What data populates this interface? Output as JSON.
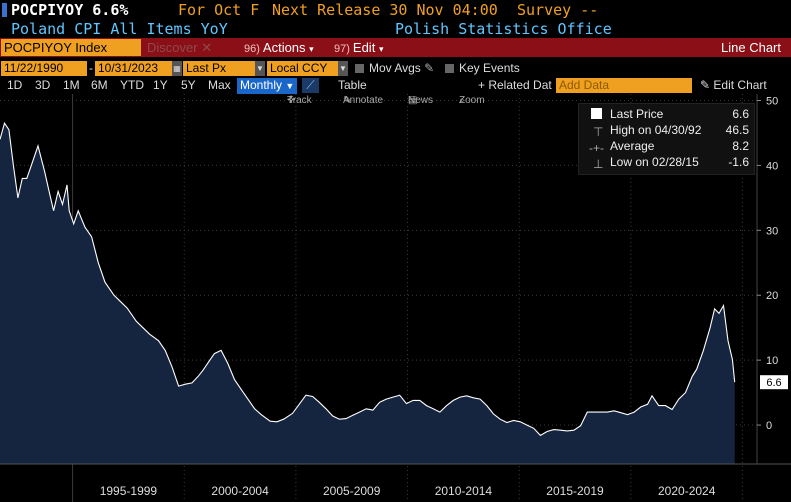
{
  "header": {
    "ticker_price": "POCPIYOY 6.6%",
    "for_label": "For Oct F",
    "next_release": "Next Release 30 Nov 04:00",
    "survey": "Survey --",
    "description": "Poland CPI All Items YoY",
    "source": "Polish Statistics Office"
  },
  "toolbar": {
    "security": "POCPIYOY Index",
    "discover": "Discover",
    "actions_num": "96)",
    "actions": "Actions",
    "edit_num": "97)",
    "edit": "Edit",
    "chart_type": "Line Chart"
  },
  "range": {
    "start": "11/22/1990",
    "end": "10/31/2023",
    "field": "Last Px",
    "currency": "Local CCY",
    "mov_avgs": "Mov Avgs",
    "key_events": "Key Events"
  },
  "periods": {
    "items": [
      "1D",
      "3D",
      "1M",
      "6M",
      "YTD",
      "1Y",
      "5Y",
      "Max"
    ],
    "frequency": "Monthly",
    "table": "Table",
    "related": "Related Dat",
    "add_data": "Add Data",
    "edit_chart": "Edit Chart"
  },
  "tools": {
    "track": "Track",
    "annotate": "Annotate",
    "news": "News",
    "zoom": "Zoom"
  },
  "legend": {
    "last_label": "Last Price",
    "last_value": "6.6",
    "high_label": "High on 04/30/92",
    "high_value": "46.5",
    "avg_label": "Average",
    "avg_value": "8.2",
    "low_label": "Low on 02/28/15",
    "low_value": "-1.6"
  },
  "colors": {
    "accent_orange": "#f0a020",
    "toolbar_red": "#8a0f16",
    "fill": "#16253f",
    "line": "#ffffff"
  },
  "chart_data": {
    "type": "area",
    "title": "",
    "xlabel": "",
    "ylabel": "",
    "ylim": [
      -6,
      51
    ],
    "xlim": [
      1990.9,
      2024.8
    ],
    "yticks": [
      0,
      10,
      20,
      30,
      40,
      50
    ],
    "xticks": [
      "1995-1999",
      "2000-2004",
      "2005-2009",
      "2010-2014",
      "2015-2019",
      "2020-2024"
    ],
    "last_value_label": "6.6",
    "series": [
      {
        "x": [
          1990.9,
          1991.1,
          1991.3,
          1991.5,
          1991.7,
          1991.9,
          1992.1,
          1992.3,
          1992.6,
          1992.9,
          1993.1,
          1993.3,
          1993.5,
          1993.7,
          1993.9,
          1994.0,
          1994.2,
          1994.4,
          1994.7,
          1995.0,
          1995.3,
          1995.6,
          1996.0,
          1996.3,
          1996.6,
          1997.0,
          1997.3,
          1997.6,
          1998.0,
          1998.3,
          1998.6,
          1998.9,
          1999.2,
          1999.5,
          1999.8,
          2000.0,
          2000.3,
          2000.5,
          2000.8,
          2001.1,
          2001.4,
          2001.7,
          2002.0,
          2002.3,
          2002.6,
          2003.0,
          2003.3,
          2003.6,
          2004.0,
          2004.3,
          2004.6,
          2004.9,
          2005.2,
          2005.5,
          2005.8,
          2006.1,
          2006.4,
          2006.7,
          2007.0,
          2007.3,
          2007.6,
          2007.9,
          2008.2,
          2008.5,
          2008.8,
          2009.1,
          2009.4,
          2009.7,
          2010.0,
          2010.3,
          2010.6,
          2010.9,
          2011.2,
          2011.5,
          2011.8,
          2012.1,
          2012.4,
          2012.7,
          2013.0,
          2013.3,
          2013.6,
          2013.9,
          2014.2,
          2014.5,
          2014.8,
          2015.1,
          2015.4,
          2015.7,
          2016.0,
          2016.3,
          2016.6,
          2016.9,
          2017.2,
          2017.5,
          2017.8,
          2018.1,
          2018.4,
          2018.7,
          2019.0,
          2019.3,
          2019.6,
          2019.9,
          2020.1,
          2020.4,
          2020.7,
          2021.0,
          2021.3,
          2021.6,
          2021.9,
          2022.1,
          2022.4,
          2022.7,
          2022.9,
          2023.1,
          2023.3,
          2023.5,
          2023.7,
          2023.8
        ],
        "values": [
          44,
          46.5,
          45.5,
          40,
          35,
          38,
          38,
          40,
          43,
          39,
          36,
          33,
          36,
          34,
          37,
          33,
          31,
          33,
          30.5,
          29,
          25,
          22,
          20,
          19,
          18,
          16,
          15,
          14,
          13,
          11.5,
          9,
          6,
          6.3,
          6.5,
          7.6,
          8.5,
          10,
          11,
          11.5,
          9.5,
          7,
          5.5,
          4,
          2.5,
          1.6,
          0.6,
          0.5,
          0.9,
          1.8,
          3.2,
          4.6,
          4.4,
          3.5,
          2.5,
          1.4,
          0.9,
          1.0,
          1.5,
          2.0,
          2.5,
          2.3,
          3.5,
          4.0,
          4.3,
          4.6,
          3.3,
          3.8,
          3.8,
          3.0,
          2.5,
          2.0,
          3.0,
          3.8,
          4.3,
          4.5,
          4.2,
          4.0,
          3.0,
          1.7,
          0.9,
          0.4,
          0.7,
          0.5,
          0.0,
          -0.5,
          -1.6,
          -1.0,
          -0.7,
          -0.8,
          -0.9,
          -0.8,
          -0.1,
          2.0,
          2.0,
          2.0,
          2.0,
          2.2,
          1.9,
          1.6,
          2.0,
          2.8,
          3.2,
          4.5,
          3.0,
          3.0,
          2.4,
          4.0,
          5.0,
          7.5,
          8.6,
          11.5,
          15.0,
          17.9,
          17.2,
          18.4,
          13.0,
          10.1,
          6.6
        ]
      }
    ]
  }
}
